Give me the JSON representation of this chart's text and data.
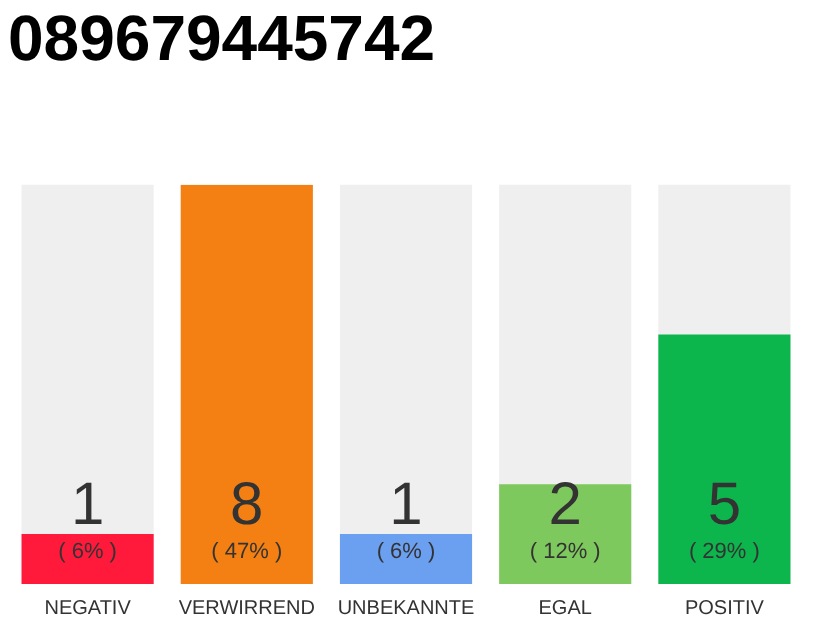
{
  "chart_data": {
    "type": "bar",
    "title": "089679445742",
    "categories": [
      "NEGATIV",
      "VERWIRREND",
      "UNBEKANNTE",
      "EGAL",
      "POSITIV"
    ],
    "values": [
      1,
      8,
      1,
      2,
      5
    ],
    "colors": [
      "#ff1a3c",
      "#f47f12",
      "#6b9ff0",
      "#7ec95d",
      "#0cb64c"
    ],
    "data_labels": true,
    "annotations": [
      "( 6% )",
      "( 47% )",
      "( 6% )",
      "( 12% )",
      "( 29% )"
    ],
    "grid": false,
    "legend": false
  }
}
